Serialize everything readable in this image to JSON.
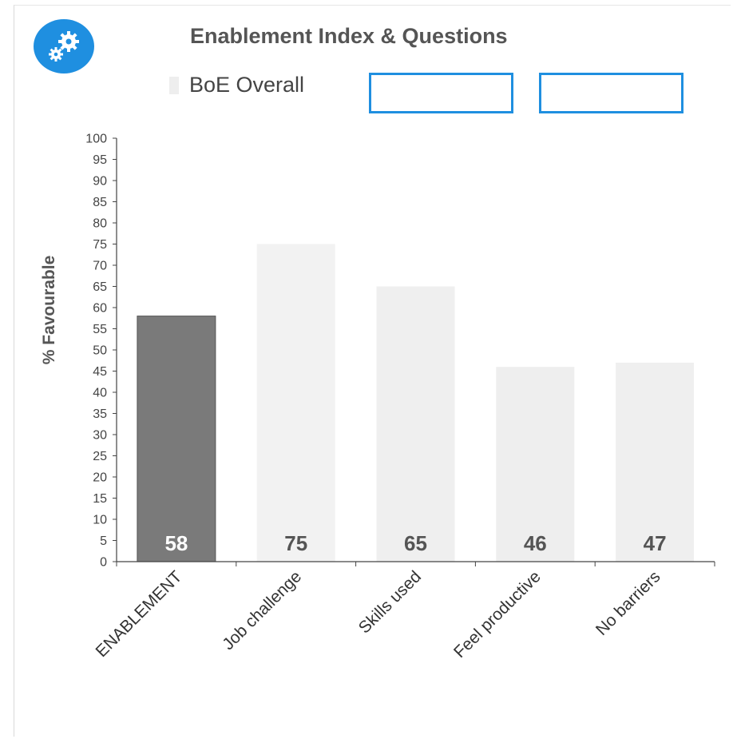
{
  "header": {
    "title": "Enablement Index & Questions",
    "logo_icon": "gears-icon"
  },
  "legend": {
    "items": [
      {
        "label": "BoE Overall",
        "color": "#eeeeee"
      }
    ],
    "empty_boxes": 2,
    "box_border_color": "#1f8fe0"
  },
  "chart_data": {
    "type": "bar",
    "title": "Enablement Index & Questions",
    "ylabel": "% Favourable",
    "xlabel": "",
    "ylim": [
      0,
      100
    ],
    "yticks": [
      0,
      5,
      10,
      15,
      20,
      25,
      30,
      35,
      40,
      45,
      50,
      55,
      60,
      65,
      70,
      75,
      80,
      85,
      90,
      95,
      100
    ],
    "categories": [
      "ENABLEMENT",
      "Job challenge",
      "Skills used",
      "Feel productive",
      "No barriers"
    ],
    "series": [
      {
        "name": "BoE Overall",
        "values": [
          58,
          75,
          65,
          46,
          47
        ]
      }
    ],
    "bar_colors": [
      "#7a7a7a",
      "#f2f2f2",
      "#efefef",
      "#eeeeee",
      "#efefef"
    ],
    "grid": false,
    "legend_position": "top"
  }
}
